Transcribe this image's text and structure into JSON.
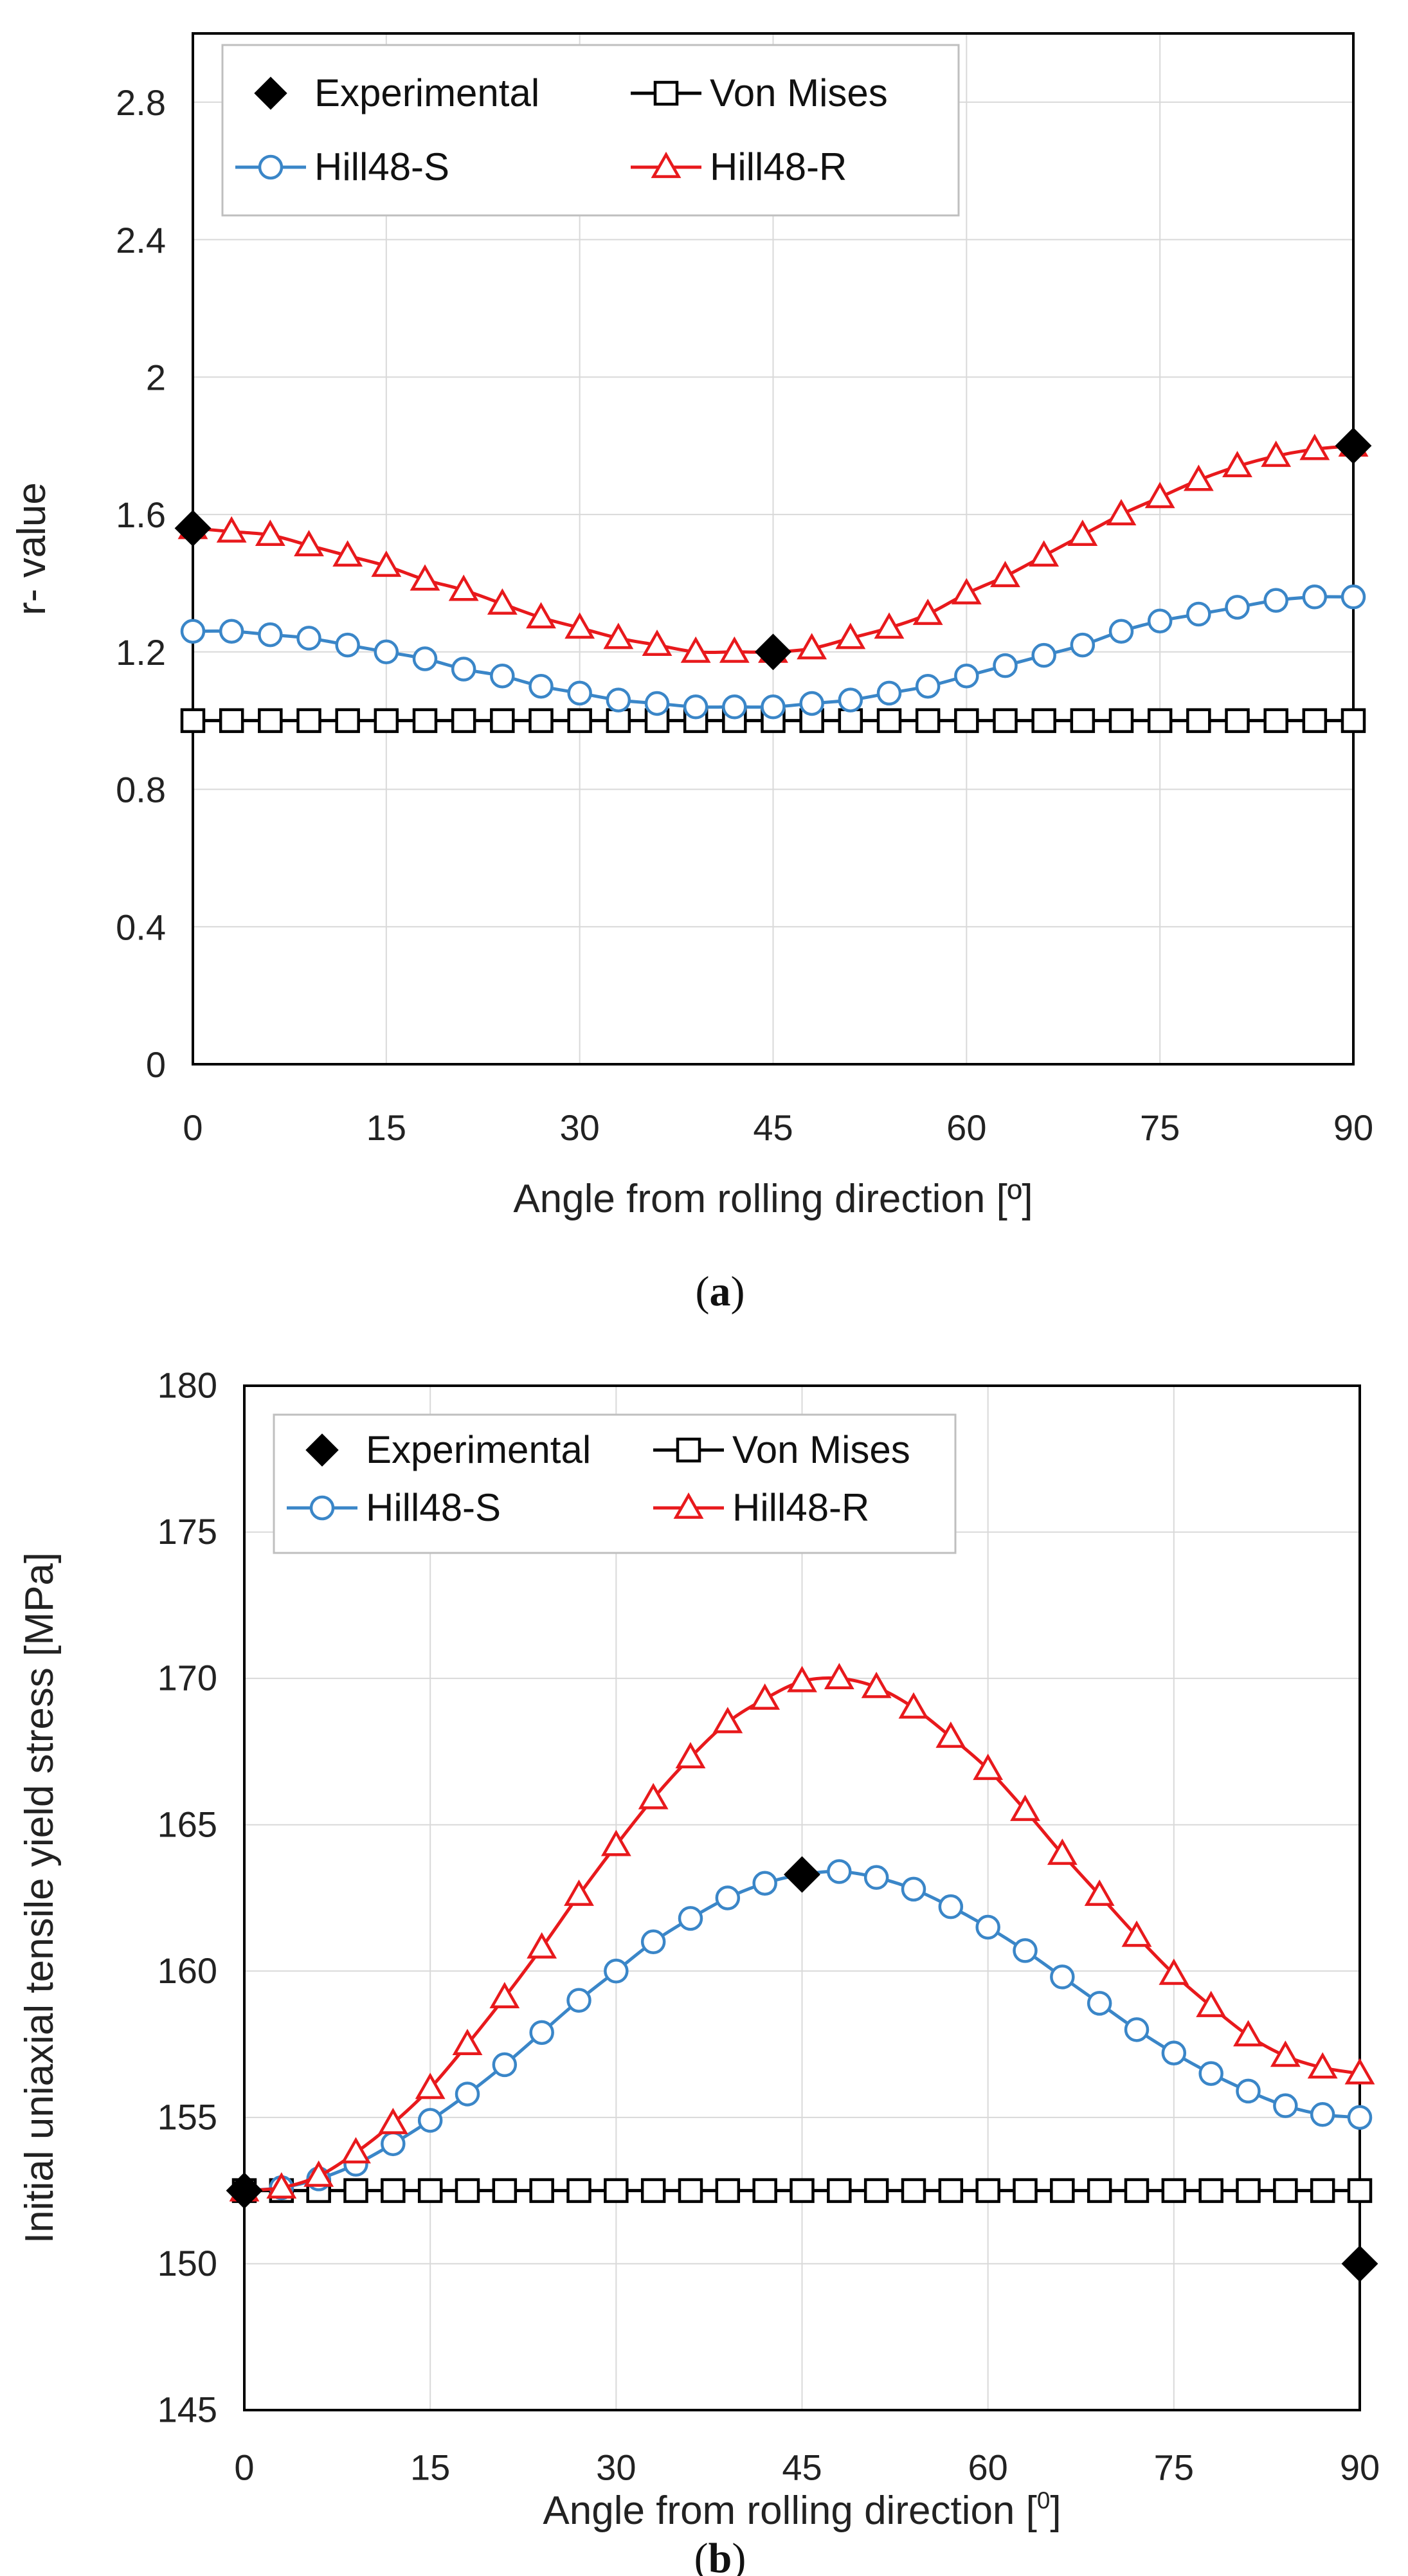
{
  "chart_data": [
    {
      "type": "line",
      "caption_letter": "a",
      "xlabel": "Angle from rolling direction [º]",
      "ylabel": "r- value",
      "xlim": [
        0,
        90
      ],
      "ylim": [
        0,
        3.0
      ],
      "xticks": [
        0,
        15,
        30,
        45,
        60,
        75,
        90
      ],
      "xtick_labels": [
        "0",
        "15",
        "30",
        "45",
        "60",
        "75",
        "90"
      ],
      "yticks": [
        0,
        0.4,
        0.8,
        1.2,
        1.6,
        2.0,
        2.4,
        2.8
      ],
      "ytick_labels": [
        "0",
        "0.4",
        "0.8",
        "1.2",
        "1.6",
        "2",
        "2.4",
        "2.8"
      ],
      "grid": true,
      "legend_position": "top-left",
      "series": [
        {
          "name": "Experimental",
          "marker": "diamond",
          "color": "#000000",
          "line": false,
          "x": [
            0,
            45,
            90
          ],
          "y": [
            1.56,
            1.2,
            1.8
          ]
        },
        {
          "name": "Von Mises",
          "marker": "square",
          "color": "#000000",
          "line": true,
          "x": [
            0,
            3,
            6,
            9,
            12,
            15,
            18,
            21,
            24,
            27,
            30,
            33,
            36,
            39,
            42,
            45,
            48,
            51,
            54,
            57,
            60,
            63,
            66,
            69,
            72,
            75,
            78,
            81,
            84,
            87,
            90
          ],
          "y": [
            1.0,
            1.0,
            1.0,
            1.0,
            1.0,
            1.0,
            1.0,
            1.0,
            1.0,
            1.0,
            1.0,
            1.0,
            1.0,
            1.0,
            1.0,
            1.0,
            1.0,
            1.0,
            1.0,
            1.0,
            1.0,
            1.0,
            1.0,
            1.0,
            1.0,
            1.0,
            1.0,
            1.0,
            1.0,
            1.0,
            1.0
          ]
        },
        {
          "name": "Hill48-S",
          "marker": "circle",
          "color": "#3a86c8",
          "line": true,
          "x": [
            0,
            3,
            6,
            9,
            12,
            15,
            18,
            21,
            24,
            27,
            30,
            33,
            36,
            39,
            42,
            45,
            48,
            51,
            54,
            57,
            60,
            63,
            66,
            69,
            72,
            75,
            78,
            81,
            84,
            87,
            90
          ],
          "y": [
            1.26,
            1.26,
            1.25,
            1.24,
            1.22,
            1.2,
            1.18,
            1.15,
            1.13,
            1.1,
            1.08,
            1.06,
            1.05,
            1.04,
            1.04,
            1.04,
            1.05,
            1.06,
            1.08,
            1.1,
            1.13,
            1.16,
            1.19,
            1.22,
            1.26,
            1.29,
            1.31,
            1.33,
            1.35,
            1.36,
            1.36
          ]
        },
        {
          "name": "Hill48-R",
          "marker": "triangle",
          "color": "#e8191c",
          "line": true,
          "x": [
            0,
            3,
            6,
            9,
            12,
            15,
            18,
            21,
            24,
            27,
            30,
            33,
            36,
            39,
            42,
            45,
            48,
            51,
            54,
            57,
            60,
            63,
            66,
            69,
            72,
            75,
            78,
            81,
            84,
            87,
            90
          ],
          "y": [
            1.56,
            1.55,
            1.54,
            1.51,
            1.48,
            1.45,
            1.41,
            1.38,
            1.34,
            1.3,
            1.27,
            1.24,
            1.22,
            1.2,
            1.2,
            1.2,
            1.21,
            1.24,
            1.27,
            1.31,
            1.37,
            1.42,
            1.48,
            1.54,
            1.6,
            1.65,
            1.7,
            1.74,
            1.77,
            1.79,
            1.8
          ]
        }
      ]
    },
    {
      "type": "line",
      "caption_letter": "b",
      "xlabel": "Angle from rolling direction [",
      "xlabel_sup": "0",
      "xlabel_end": "]",
      "ylabel": "Initial uniaxial tensile yield stress [MPa]",
      "xlim": [
        0,
        90
      ],
      "ylim": [
        145,
        180
      ],
      "xticks": [
        0,
        15,
        30,
        45,
        60,
        75,
        90
      ],
      "xtick_labels": [
        "0",
        "15",
        "30",
        "45",
        "60",
        "75",
        "90"
      ],
      "yticks": [
        145,
        150,
        155,
        160,
        165,
        170,
        175,
        180
      ],
      "ytick_labels": [
        "145",
        "150",
        "155",
        "160",
        "165",
        "170",
        "175",
        "180"
      ],
      "grid": true,
      "legend_position": "top-left",
      "series": [
        {
          "name": "Experimental",
          "marker": "diamond",
          "color": "#000000",
          "line": false,
          "x": [
            0,
            45,
            90
          ],
          "y": [
            152.5,
            163.3,
            150.0
          ]
        },
        {
          "name": "Von Mises",
          "marker": "square",
          "color": "#000000",
          "line": true,
          "x": [
            0,
            3,
            6,
            9,
            12,
            15,
            18,
            21,
            24,
            27,
            30,
            33,
            36,
            39,
            42,
            45,
            48,
            51,
            54,
            57,
            60,
            63,
            66,
            69,
            72,
            75,
            78,
            81,
            84,
            87,
            90
          ],
          "y": [
            152.5,
            152.5,
            152.5,
            152.5,
            152.5,
            152.5,
            152.5,
            152.5,
            152.5,
            152.5,
            152.5,
            152.5,
            152.5,
            152.5,
            152.5,
            152.5,
            152.5,
            152.5,
            152.5,
            152.5,
            152.5,
            152.5,
            152.5,
            152.5,
            152.5,
            152.5,
            152.5,
            152.5,
            152.5,
            152.5,
            152.5
          ]
        },
        {
          "name": "Hill48-S",
          "marker": "circle",
          "color": "#3a86c8",
          "line": true,
          "x": [
            0,
            3,
            6,
            9,
            12,
            15,
            18,
            21,
            24,
            27,
            30,
            33,
            36,
            39,
            42,
            45,
            48,
            51,
            54,
            57,
            60,
            63,
            66,
            69,
            72,
            75,
            78,
            81,
            84,
            87,
            90
          ],
          "y": [
            152.5,
            152.6,
            152.9,
            153.4,
            154.1,
            154.9,
            155.8,
            156.8,
            157.9,
            159.0,
            160.0,
            161.0,
            161.8,
            162.5,
            163.0,
            163.3,
            163.4,
            163.2,
            162.8,
            162.2,
            161.5,
            160.7,
            159.8,
            158.9,
            158.0,
            157.2,
            156.5,
            155.9,
            155.4,
            155.1,
            155.0
          ]
        },
        {
          "name": "Hill48-R",
          "marker": "triangle",
          "color": "#e8191c",
          "line": true,
          "x": [
            0,
            3,
            6,
            9,
            12,
            15,
            18,
            21,
            24,
            27,
            30,
            33,
            36,
            39,
            42,
            45,
            48,
            51,
            54,
            57,
            60,
            63,
            66,
            69,
            72,
            75,
            78,
            81,
            84,
            87,
            90
          ],
          "y": [
            152.5,
            152.6,
            153.0,
            153.8,
            154.8,
            156.0,
            157.5,
            159.1,
            160.8,
            162.6,
            164.3,
            165.9,
            167.3,
            168.5,
            169.3,
            169.9,
            170.0,
            169.7,
            169.0,
            168.0,
            166.9,
            165.5,
            164.0,
            162.6,
            161.2,
            159.9,
            158.8,
            157.8,
            157.1,
            156.7,
            156.5
          ]
        }
      ]
    }
  ]
}
